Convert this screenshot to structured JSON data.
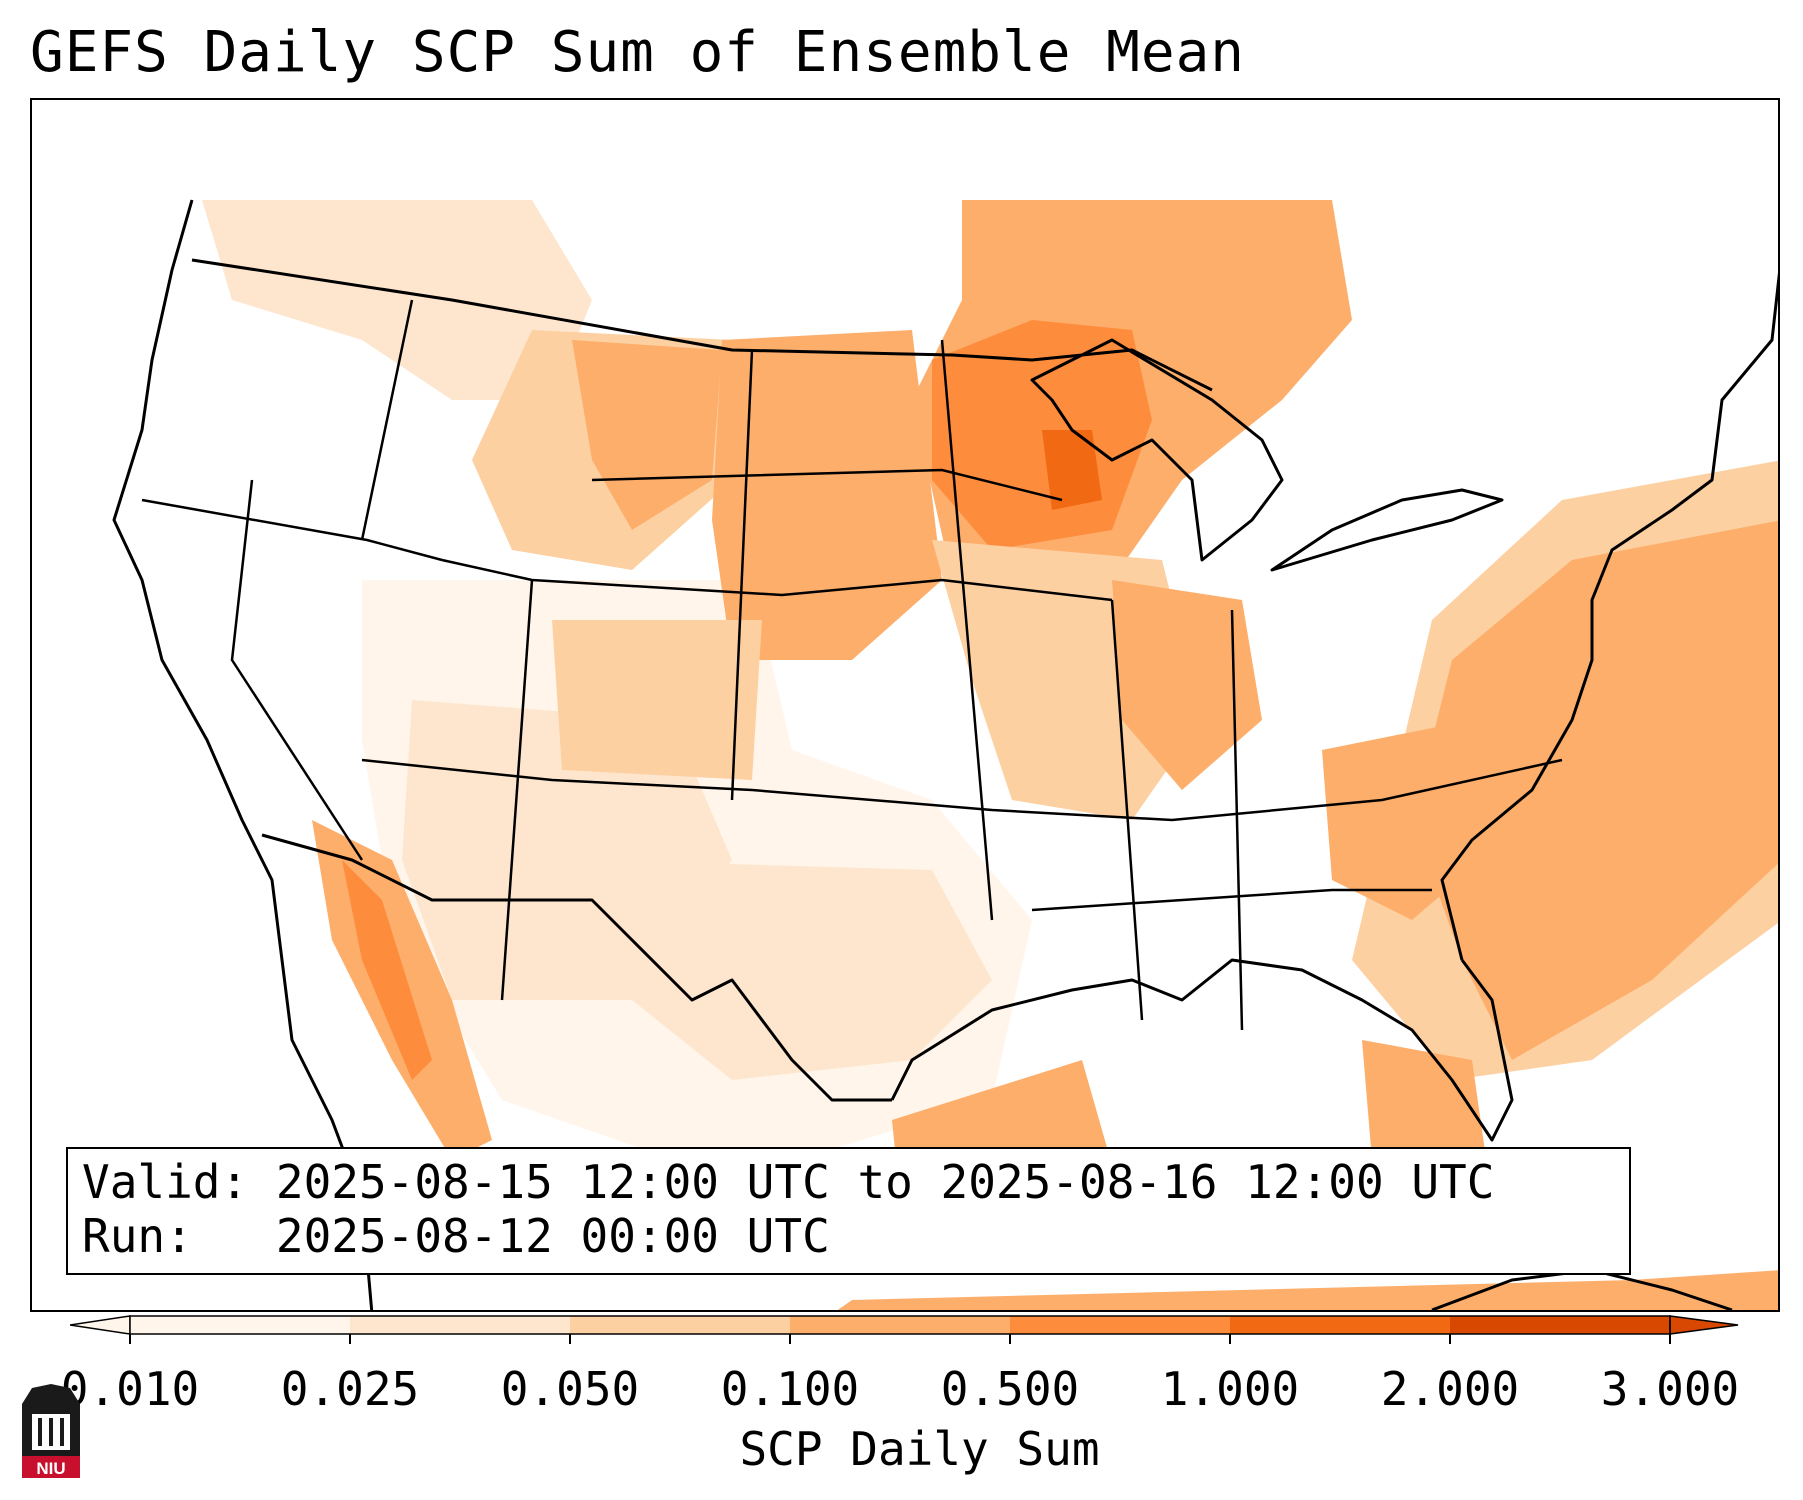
{
  "title": "GEFS Daily SCP Sum of Ensemble Mean",
  "info": {
    "valid_label": "Valid:",
    "valid_range": "2025-08-15 12:00 UTC to 2025-08-16 12:00 UTC",
    "run_label": "Run:",
    "run_time": "2025-08-12 00:00 UTC"
  },
  "colorbar": {
    "label": "SCP Daily Sum",
    "ticks": [
      "0.010",
      "0.025",
      "0.050",
      "0.100",
      "0.500",
      "1.000",
      "2.000",
      "3.000"
    ],
    "colors": [
      "#fff5eb",
      "#fee6ce",
      "#fdd0a2",
      "#fdae6b",
      "#fd8d3c",
      "#f16913",
      "#d94801"
    ],
    "extend": "both"
  },
  "logo": {
    "text": "NIU"
  },
  "icons": {
    "logo": "niu-tower-logo-icon"
  }
}
